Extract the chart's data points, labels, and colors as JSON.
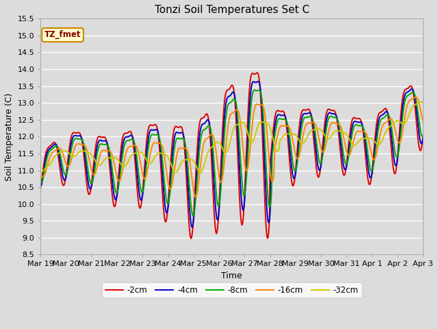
{
  "title": "Tonzi Soil Temperatures Set C",
  "xlabel": "Time",
  "ylabel": "Soil Temperature (C)",
  "ylim": [
    8.5,
    15.5
  ],
  "yticks": [
    8.5,
    9.0,
    9.5,
    10.0,
    10.5,
    11.0,
    11.5,
    12.0,
    12.5,
    13.0,
    13.5,
    14.0,
    14.5,
    15.0,
    15.5
  ],
  "xtick_labels": [
    "Mar 19",
    "Mar 20",
    "Mar 21",
    "Mar 22",
    "Mar 23",
    "Mar 24",
    "Mar 25",
    "Mar 26",
    "Mar 27",
    "Mar 28",
    "Mar 29",
    "Mar 30",
    "Mar 31",
    "Apr 1",
    "Apr 2",
    "Apr 3"
  ],
  "series_colors": [
    "#dd0000",
    "#0000cc",
    "#00aa00",
    "#ff8800",
    "#cccc00"
  ],
  "series_labels": [
    "-2cm",
    "-4cm",
    "-8cm",
    "-16cm",
    "-32cm"
  ],
  "legend_label": "TZ_fmet",
  "legend_bg": "#ffffcc",
  "legend_border": "#cc8800",
  "plot_bg": "#dcdcdc",
  "fig_bg": "#dcdcdc",
  "grid_color": "#ffffff",
  "title_fontsize": 11,
  "axis_fontsize": 9,
  "tick_fontsize": 8,
  "linewidth": 1.4
}
